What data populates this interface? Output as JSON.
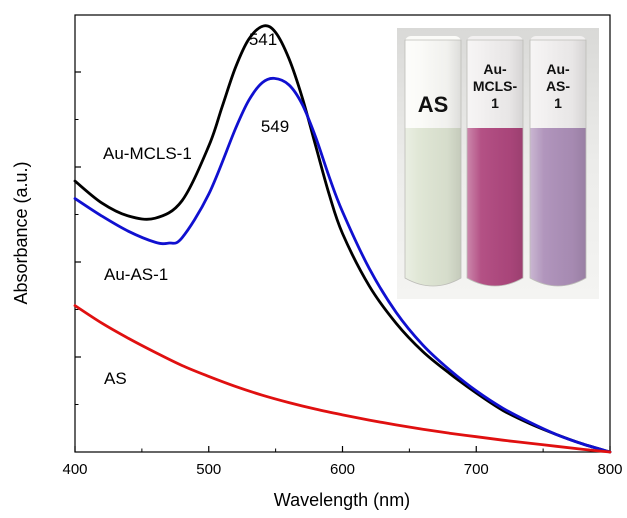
{
  "chart_data": {
    "type": "line",
    "title": "",
    "xlabel": "Wavelength (nm)",
    "ylabel": "Absorbance (a.u.)",
    "xlim": [
      400,
      800
    ],
    "ylim": [
      0,
      1
    ],
    "xticks": [
      400,
      500,
      600,
      700,
      800
    ],
    "grid": false,
    "legend": "none",
    "series": [
      {
        "name": "Au-MCLS-1",
        "color": "#000000",
        "x": [
          400,
          420,
          440,
          460,
          480,
          500,
          510,
          520,
          530,
          541,
          550,
          560,
          570,
          580,
          590,
          600,
          620,
          640,
          660,
          680,
          700,
          720,
          740,
          760,
          780,
          800
        ],
        "y": [
          0.62,
          0.57,
          0.54,
          0.535,
          0.575,
          0.7,
          0.79,
          0.88,
          0.945,
          0.975,
          0.96,
          0.9,
          0.81,
          0.7,
          0.59,
          0.5,
          0.38,
          0.295,
          0.23,
          0.18,
          0.135,
          0.095,
          0.065,
          0.04,
          0.018,
          0.0
        ]
      },
      {
        "name": "Au-AS-1",
        "color": "#1010d0",
        "x": [
          400,
          420,
          440,
          460,
          470,
          480,
          500,
          520,
          530,
          540,
          549,
          560,
          570,
          580,
          590,
          600,
          620,
          640,
          660,
          680,
          700,
          720,
          740,
          760,
          780,
          800
        ],
        "y": [
          0.58,
          0.54,
          0.505,
          0.48,
          0.478,
          0.49,
          0.59,
          0.74,
          0.805,
          0.845,
          0.855,
          0.84,
          0.795,
          0.72,
          0.63,
          0.55,
          0.42,
          0.32,
          0.245,
          0.188,
          0.14,
          0.1,
          0.068,
          0.04,
          0.018,
          0.0
        ]
      },
      {
        "name": "AS",
        "color": "#e01010",
        "x": [
          400,
          420,
          440,
          460,
          480,
          500,
          520,
          540,
          560,
          580,
          600,
          620,
          640,
          660,
          680,
          700,
          720,
          740,
          760,
          780,
          800
        ],
        "y": [
          0.335,
          0.295,
          0.26,
          0.228,
          0.198,
          0.173,
          0.15,
          0.13,
          0.113,
          0.098,
          0.085,
          0.073,
          0.062,
          0.052,
          0.043,
          0.035,
          0.027,
          0.02,
          0.013,
          0.006,
          0.0
        ]
      }
    ],
    "annotations": {
      "peak_mcls": "541",
      "peak_as": "549",
      "label_mcls": "Au-MCLS-1",
      "label_as1": "Au-AS-1",
      "label_as": "AS"
    },
    "inset": {
      "vials": [
        {
          "lines": [
            "AS"
          ],
          "liquid_color": "#dfe6d4"
        },
        {
          "lines": [
            "Au-",
            "MCLS-",
            "1"
          ],
          "liquid_color": "#b0487f"
        },
        {
          "lines": [
            "Au-",
            "AS-",
            "1"
          ],
          "liquid_color": "#ad90b9"
        }
      ]
    }
  }
}
